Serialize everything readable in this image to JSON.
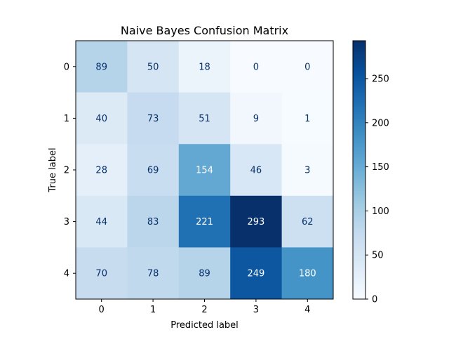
{
  "chart_data": {
    "type": "heatmap",
    "title": "Naive Bayes Confusion Matrix",
    "xlabel": "Predicted label",
    "ylabel": "True label",
    "x_categories": [
      "0",
      "1",
      "2",
      "3",
      "4"
    ],
    "y_categories": [
      "0",
      "1",
      "2",
      "3",
      "4"
    ],
    "values": [
      [
        89,
        50,
        18,
        0,
        0
      ],
      [
        40,
        73,
        51,
        9,
        1
      ],
      [
        28,
        69,
        154,
        46,
        3
      ],
      [
        44,
        83,
        221,
        293,
        62
      ],
      [
        70,
        78,
        89,
        249,
        180
      ]
    ],
    "colormap": "Blues",
    "color_range": [
      0,
      293
    ],
    "colorbar_ticks": [
      "0",
      "50",
      "100",
      "150",
      "200",
      "250"
    ],
    "text_color_light": "#ffffff",
    "text_color_dark": "#08306b"
  }
}
